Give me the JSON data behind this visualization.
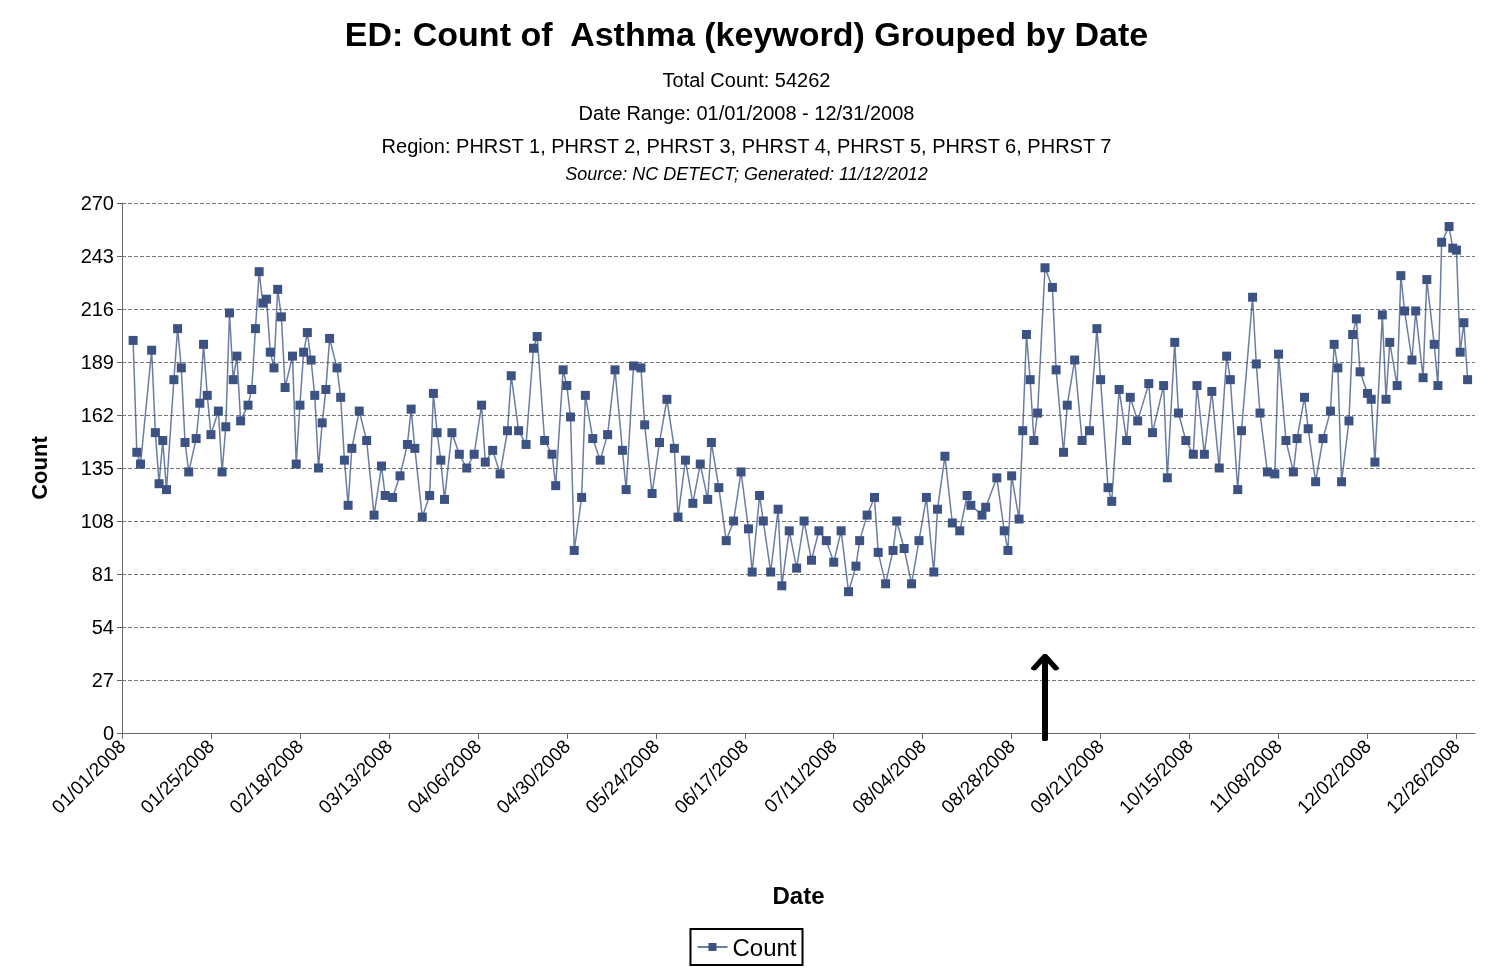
{
  "chart_data": {
    "type": "line",
    "title": "ED: Count of  Asthma (keyword) Grouped by Date",
    "subtitle": "Total Count: 54262\nDate Range: 01/01/2008 - 12/31/2008\nRegion: PHRST 1, PHRST 2, PHRST 3, PHRST 4, PHRST 5, PHRST 6, PHRST 7",
    "annotations": [
      "Source: NC DETECT; Generated: 11/12/2012"
    ],
    "xlabel": "Date",
    "ylabel": "Count",
    "x": [
      "2008-01-04",
      "2008-01-05",
      "2008-01-06",
      "2008-01-09",
      "2008-01-10",
      "2008-01-11",
      "2008-01-12",
      "2008-01-13",
      "2008-01-15",
      "2008-01-16",
      "2008-01-17",
      "2008-01-18",
      "2008-01-19",
      "2008-01-21",
      "2008-01-22",
      "2008-01-23",
      "2008-01-24",
      "2008-01-25",
      "2008-01-27",
      "2008-01-28",
      "2008-01-29",
      "2008-01-30",
      "2008-01-31",
      "2008-02-01",
      "2008-02-02",
      "2008-02-04",
      "2008-02-05",
      "2008-02-06",
      "2008-02-07",
      "2008-02-08",
      "2008-02-09",
      "2008-02-10",
      "2008-02-11",
      "2008-02-12",
      "2008-02-13",
      "2008-02-14",
      "2008-02-16",
      "2008-02-17",
      "2008-02-18",
      "2008-02-19",
      "2008-02-20",
      "2008-02-21",
      "2008-02-22",
      "2008-02-23",
      "2008-02-24",
      "2008-02-25",
      "2008-02-26",
      "2008-02-28",
      "2008-02-29",
      "2008-03-01",
      "2008-03-02",
      "2008-03-03",
      "2008-03-05",
      "2008-03-07",
      "2008-03-09",
      "2008-03-11",
      "2008-03-12",
      "2008-03-14",
      "2008-03-16",
      "2008-03-18",
      "2008-03-19",
      "2008-03-20",
      "2008-03-22",
      "2008-03-24",
      "2008-03-25",
      "2008-03-26",
      "2008-03-27",
      "2008-03-28",
      "2008-03-30",
      "2008-04-01",
      "2008-04-03",
      "2008-04-05",
      "2008-04-07",
      "2008-04-08",
      "2008-04-10",
      "2008-04-12",
      "2008-04-14",
      "2008-04-15",
      "2008-04-17",
      "2008-04-19",
      "2008-04-21",
      "2008-04-22",
      "2008-04-24",
      "2008-04-26",
      "2008-04-27",
      "2008-04-29",
      "2008-04-30",
      "2008-05-01",
      "2008-05-02",
      "2008-05-04",
      "2008-05-05",
      "2008-05-07",
      "2008-05-09",
      "2008-05-11",
      "2008-05-13",
      "2008-05-15",
      "2008-05-16",
      "2008-05-18",
      "2008-05-20",
      "2008-05-21",
      "2008-05-23",
      "2008-05-25",
      "2008-05-27",
      "2008-05-29",
      "2008-05-30",
      "2008-06-01",
      "2008-06-03",
      "2008-06-05",
      "2008-06-07",
      "2008-06-08",
      "2008-06-10",
      "2008-06-12",
      "2008-06-14",
      "2008-06-16",
      "2008-06-18",
      "2008-06-19",
      "2008-06-21",
      "2008-06-22",
      "2008-06-24",
      "2008-06-26",
      "2008-06-27",
      "2008-06-29",
      "2008-07-01",
      "2008-07-03",
      "2008-07-05",
      "2008-07-07",
      "2008-07-09",
      "2008-07-11",
      "2008-07-13",
      "2008-07-15",
      "2008-07-17",
      "2008-07-18",
      "2008-07-20",
      "2008-07-22",
      "2008-07-23",
      "2008-07-25",
      "2008-07-27",
      "2008-07-28",
      "2008-07-30",
      "2008-08-01",
      "2008-08-03",
      "2008-08-05",
      "2008-08-07",
      "2008-08-08",
      "2008-08-10",
      "2008-08-12",
      "2008-08-14",
      "2008-08-16",
      "2008-08-17",
      "2008-08-20",
      "2008-08-21",
      "2008-08-24",
      "2008-08-26",
      "2008-08-27",
      "2008-08-28",
      "2008-08-30",
      "2008-08-31",
      "2008-09-01",
      "2008-09-02",
      "2008-09-03",
      "2008-09-04",
      "2008-09-06",
      "2008-09-08",
      "2008-09-09",
      "2008-09-11",
      "2008-09-12",
      "2008-09-14",
      "2008-09-16",
      "2008-09-18",
      "2008-09-20",
      "2008-09-21",
      "2008-09-23",
      "2008-09-24",
      "2008-09-26",
      "2008-09-28",
      "2008-09-29",
      "2008-10-01",
      "2008-10-04",
      "2008-10-05",
      "2008-10-08",
      "2008-10-09",
      "2008-10-11",
      "2008-10-12",
      "2008-10-14",
      "2008-10-16",
      "2008-10-17",
      "2008-10-19",
      "2008-10-21",
      "2008-10-23",
      "2008-10-25",
      "2008-10-26",
      "2008-10-28",
      "2008-10-29",
      "2008-11-01",
      "2008-11-02",
      "2008-11-03",
      "2008-11-05",
      "2008-11-07",
      "2008-11-08",
      "2008-11-10",
      "2008-11-12",
      "2008-11-13",
      "2008-11-15",
      "2008-11-16",
      "2008-11-18",
      "2008-11-20",
      "2008-11-22",
      "2008-11-23",
      "2008-11-24",
      "2008-11-25",
      "2008-11-27",
      "2008-11-28",
      "2008-11-29",
      "2008-11-30",
      "2008-12-02",
      "2008-12-03",
      "2008-12-04",
      "2008-12-06",
      "2008-12-07",
      "2008-12-08",
      "2008-12-10",
      "2008-12-11",
      "2008-12-12",
      "2008-12-14",
      "2008-12-15",
      "2008-12-17",
      "2008-12-18",
      "2008-12-20",
      "2008-12-21",
      "2008-12-22",
      "2008-12-24",
      "2008-12-25",
      "2008-12-26",
      "2008-12-27",
      "2008-12-28",
      "2008-12-29"
    ],
    "series": [
      {
        "name": "Count",
        "color": "#3b5283",
        "values": [
          200,
          143,
          137,
          195,
          153,
          127,
          149,
          124,
          180,
          206,
          186,
          148,
          133,
          150,
          168,
          198,
          172,
          152,
          164,
          133,
          156,
          214,
          180,
          192,
          159,
          167,
          175,
          206,
          235,
          219,
          221,
          194,
          186,
          226,
          212,
          176,
          192,
          137,
          167,
          194,
          204,
          190,
          172,
          135,
          158,
          175,
          201,
          186,
          171,
          139,
          116,
          145,
          164,
          149,
          111,
          136,
          121,
          120,
          131,
          147,
          165,
          145,
          110,
          121,
          173,
          153,
          139,
          119,
          153,
          142,
          135,
          142,
          167,
          138,
          144,
          132,
          154,
          182,
          154,
          147,
          196,
          202,
          149,
          142,
          126,
          185,
          177,
          161,
          93,
          120,
          172,
          150,
          139,
          152,
          185,
          144,
          124,
          187,
          186,
          157,
          122,
          148,
          170,
          145,
          110,
          139,
          117,
          137,
          119,
          148,
          125,
          98,
          108,
          133,
          104,
          82,
          121,
          108,
          82,
          114,
          75,
          103,
          84,
          108,
          88,
          103,
          98,
          87,
          103,
          72,
          85,
          98,
          111,
          120,
          92,
          76,
          93,
          108,
          94,
          76,
          98,
          120,
          82,
          114,
          141,
          107,
          103,
          121,
          116,
          111,
          115,
          130,
          103,
          93,
          131,
          109,
          154,
          203,
          180,
          149,
          163,
          237,
          227,
          185,
          143,
          167,
          190,
          149,
          154,
          206,
          180,
          125,
          118,
          175,
          149,
          171,
          159,
          178,
          153,
          177,
          130,
          199,
          163,
          149,
          142,
          177,
          142,
          174,
          135,
          192,
          180,
          124,
          154,
          222,
          188,
          163,
          133,
          132,
          193,
          149,
          133,
          150,
          171,
          155,
          128,
          150,
          164,
          198,
          186,
          128,
          159,
          203,
          211,
          184,
          173,
          170,
          138,
          213,
          170,
          199,
          177,
          233,
          215,
          190,
          215,
          181,
          231,
          198,
          177,
          250,
          258,
          247,
          246,
          194,
          209,
          180
        ]
      }
    ],
    "xlim": [
      "2008-01-01",
      "2008-12-31"
    ],
    "xticks": [
      {
        "value": "2008-01-01",
        "label": "01/01/2008"
      },
      {
        "value": "2008-01-25",
        "label": "01/25/2008"
      },
      {
        "value": "2008-02-18",
        "label": "02/18/2008"
      },
      {
        "value": "2008-03-13",
        "label": "03/13/2008"
      },
      {
        "value": "2008-04-06",
        "label": "04/06/2008"
      },
      {
        "value": "2008-04-30",
        "label": "04/30/2008"
      },
      {
        "value": "2008-05-24",
        "label": "05/24/2008"
      },
      {
        "value": "2008-06-17",
        "label": "06/17/2008"
      },
      {
        "value": "2008-07-11",
        "label": "07/11/2008"
      },
      {
        "value": "2008-08-04",
        "label": "08/04/2008"
      },
      {
        "value": "2008-08-28",
        "label": "08/28/2008"
      },
      {
        "value": "2008-09-21",
        "label": "09/21/2008"
      },
      {
        "value": "2008-10-15",
        "label": "10/15/2008"
      },
      {
        "value": "2008-11-08",
        "label": "11/08/2008"
      },
      {
        "value": "2008-12-02",
        "label": "12/02/2008"
      },
      {
        "value": "2008-12-26",
        "label": "12/26/2008"
      }
    ],
    "ylim": [
      0,
      270
    ],
    "yticks": [
      0,
      27,
      54,
      81,
      108,
      135,
      162,
      189,
      216,
      243,
      270
    ],
    "grid": "y",
    "legend": "bottom",
    "marker": "square",
    "line_style": "solid"
  }
}
